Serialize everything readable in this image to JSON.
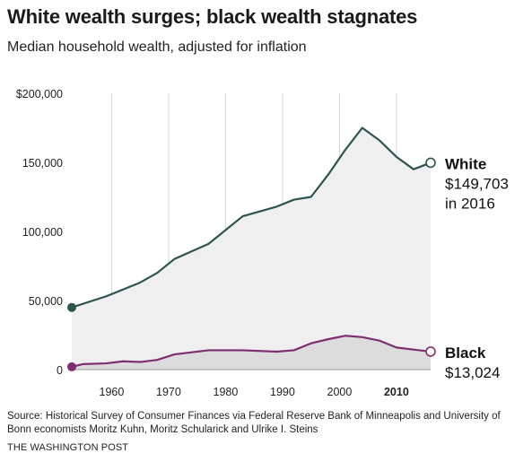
{
  "title": "White wealth surges; black wealth stagnates",
  "subtitle": "Median household wealth, adjusted for inflation",
  "source": "Source: Historical Survey of Consumer Finances via Federal Reserve Bank of Minneapolis and University of Bonn economists Moritz Kuhn, Moritz Schularick and Ulrike I. Steins",
  "credit": "THE WASHINGTON POST",
  "chart_data": {
    "type": "area",
    "ylim": [
      0,
      200000
    ],
    "xlim": [
      1953,
      2016
    ],
    "y_ticks": [
      {
        "value": 0,
        "label": "0"
      },
      {
        "value": 50000,
        "label": "50,000"
      },
      {
        "value": 100000,
        "label": "100,000"
      },
      {
        "value": 150000,
        "label": "150,000"
      },
      {
        "value": 200000,
        "label": "$200,000"
      }
    ],
    "x_ticks": [
      {
        "value": 1960,
        "label": "1960",
        "bold": false
      },
      {
        "value": 1970,
        "label": "1970",
        "bold": false
      },
      {
        "value": 1980,
        "label": "1980",
        "bold": false
      },
      {
        "value": 1990,
        "label": "1990",
        "bold": false
      },
      {
        "value": 2000,
        "label": "2000",
        "bold": false
      },
      {
        "value": 2010,
        "label": "2010",
        "bold": true
      }
    ],
    "grid": "vertical",
    "series": [
      {
        "name": "White",
        "color": "#2e5450",
        "fill": "#efefef",
        "x": [
          1953,
          1959,
          1965,
          1968,
          1971,
          1977,
          1983,
          1989,
          1992,
          1995,
          1998,
          2001,
          2004,
          2007,
          2010,
          2013,
          2016
        ],
        "y": [
          45000,
          53000,
          63000,
          70000,
          80000,
          91000,
          111000,
          118000,
          123000,
          125000,
          141000,
          159000,
          175000,
          166000,
          154000,
          145000,
          149703
        ],
        "end_label": [
          "White",
          "$149,703",
          "in 2016"
        ]
      },
      {
        "name": "Black",
        "color": "#7d2f6e",
        "fill": "#dcdcdc",
        "x": [
          1953,
          1955,
          1959,
          1962,
          1965,
          1968,
          1971,
          1977,
          1983,
          1989,
          1992,
          1995,
          1998,
          2001,
          2004,
          2007,
          2010,
          2013,
          2016
        ],
        "y": [
          2000,
          4000,
          4500,
          6000,
          5500,
          7000,
          11000,
          14000,
          14000,
          13000,
          14000,
          19000,
          22000,
          24500,
          23500,
          21000,
          16000,
          14500,
          13024
        ],
        "end_label": [
          "Black",
          "$13,024"
        ]
      }
    ]
  }
}
